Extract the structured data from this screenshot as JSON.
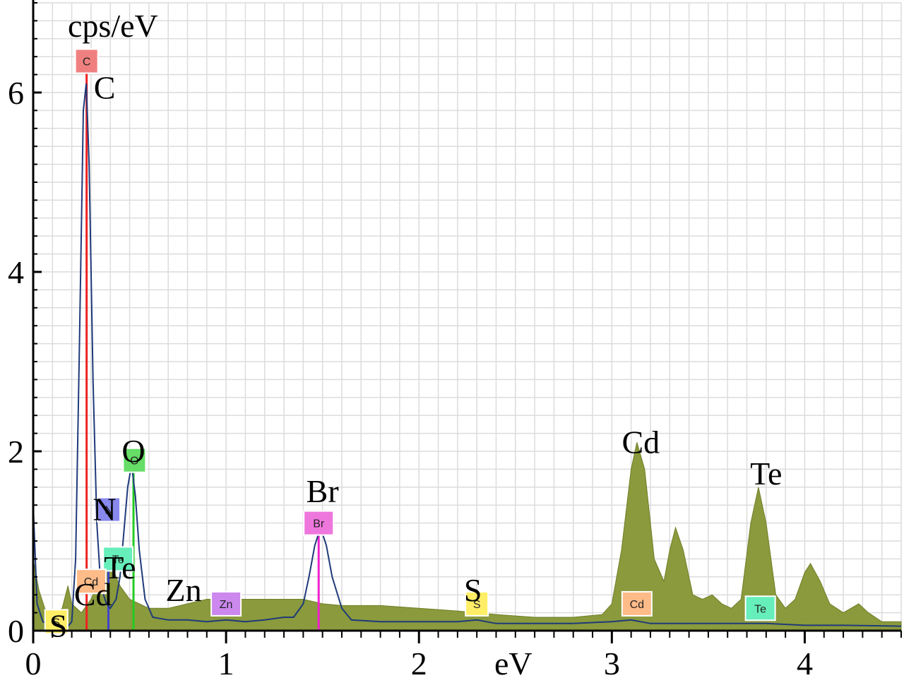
{
  "chart_data": {
    "type": "area",
    "x_unit": "eV",
    "y_unit": "cps/eV",
    "xlim": [
      0,
      4.5
    ],
    "ylim": [
      0,
      7
    ],
    "x_ticks": [
      "0",
      "1",
      "2",
      "3",
      "4"
    ],
    "y_ticks": [
      "0",
      "2",
      "4",
      "6"
    ],
    "grid": true,
    "colors": {
      "filled_spectrum": "#8a9a3c",
      "line_spectrum": "#1f3a7a",
      "background": "#ffffff",
      "grid": "#dcdcdc"
    },
    "series": [
      {
        "style": "filled",
        "points": [
          [
            0.0,
            0.8
          ],
          [
            0.03,
            0.45
          ],
          [
            0.06,
            0.25
          ],
          [
            0.1,
            0.15
          ],
          [
            0.15,
            0.25
          ],
          [
            0.18,
            0.5
          ],
          [
            0.2,
            0.3
          ],
          [
            0.25,
            0.2
          ],
          [
            0.3,
            0.35
          ],
          [
            0.35,
            0.6
          ],
          [
            0.4,
            0.75
          ],
          [
            0.45,
            0.5
          ],
          [
            0.5,
            0.35
          ],
          [
            0.6,
            0.25
          ],
          [
            0.7,
            0.25
          ],
          [
            0.8,
            0.3
          ],
          [
            0.9,
            0.35
          ],
          [
            1.0,
            0.35
          ],
          [
            1.1,
            0.35
          ],
          [
            1.2,
            0.35
          ],
          [
            1.3,
            0.35
          ],
          [
            1.4,
            0.35
          ],
          [
            1.5,
            0.3
          ],
          [
            1.6,
            0.28
          ],
          [
            1.8,
            0.28
          ],
          [
            2.0,
            0.25
          ],
          [
            2.2,
            0.22
          ],
          [
            2.4,
            0.18
          ],
          [
            2.6,
            0.15
          ],
          [
            2.8,
            0.15
          ],
          [
            2.95,
            0.18
          ],
          [
            3.0,
            0.3
          ],
          [
            3.05,
            0.9
          ],
          [
            3.1,
            1.8
          ],
          [
            3.13,
            2.1
          ],
          [
            3.17,
            1.8
          ],
          [
            3.22,
            0.8
          ],
          [
            3.27,
            0.55
          ],
          [
            3.3,
            0.9
          ],
          [
            3.33,
            1.15
          ],
          [
            3.37,
            0.9
          ],
          [
            3.42,
            0.4
          ],
          [
            3.47,
            0.35
          ],
          [
            3.52,
            0.4
          ],
          [
            3.57,
            0.3
          ],
          [
            3.62,
            0.25
          ],
          [
            3.67,
            0.35
          ],
          [
            3.72,
            1.2
          ],
          [
            3.76,
            1.6
          ],
          [
            3.8,
            1.2
          ],
          [
            3.85,
            0.4
          ],
          [
            3.9,
            0.25
          ],
          [
            3.95,
            0.35
          ],
          [
            4.0,
            0.65
          ],
          [
            4.03,
            0.75
          ],
          [
            4.08,
            0.55
          ],
          [
            4.13,
            0.3
          ],
          [
            4.2,
            0.2
          ],
          [
            4.28,
            0.3
          ],
          [
            4.33,
            0.2
          ],
          [
            4.4,
            0.1
          ],
          [
            4.5,
            0.1
          ]
        ]
      },
      {
        "style": "line",
        "points": [
          [
            0.0,
            1.4
          ],
          [
            0.02,
            0.3
          ],
          [
            0.05,
            0.1
          ],
          [
            0.1,
            0.05
          ],
          [
            0.15,
            0.05
          ],
          [
            0.18,
            0.05
          ],
          [
            0.2,
            0.1
          ],
          [
            0.22,
            0.8
          ],
          [
            0.24,
            3.2
          ],
          [
            0.26,
            5.8
          ],
          [
            0.275,
            6.1
          ],
          [
            0.29,
            5.2
          ],
          [
            0.31,
            2.8
          ],
          [
            0.33,
            1.2
          ],
          [
            0.35,
            0.5
          ],
          [
            0.38,
            0.3
          ],
          [
            0.4,
            0.25
          ],
          [
            0.43,
            0.35
          ],
          [
            0.45,
            0.6
          ],
          [
            0.47,
            1.1
          ],
          [
            0.49,
            1.6
          ],
          [
            0.51,
            1.85
          ],
          [
            0.53,
            1.5
          ],
          [
            0.55,
            0.9
          ],
          [
            0.58,
            0.35
          ],
          [
            0.62,
            0.15
          ],
          [
            0.7,
            0.12
          ],
          [
            0.8,
            0.12
          ],
          [
            0.9,
            0.1
          ],
          [
            1.0,
            0.12
          ],
          [
            1.1,
            0.1
          ],
          [
            1.2,
            0.12
          ],
          [
            1.3,
            0.15
          ],
          [
            1.35,
            0.15
          ],
          [
            1.4,
            0.3
          ],
          [
            1.43,
            0.6
          ],
          [
            1.46,
            0.95
          ],
          [
            1.49,
            1.15
          ],
          [
            1.52,
            0.95
          ],
          [
            1.55,
            0.6
          ],
          [
            1.6,
            0.25
          ],
          [
            1.65,
            0.12
          ],
          [
            1.8,
            0.1
          ],
          [
            2.0,
            0.1
          ],
          [
            2.2,
            0.1
          ],
          [
            2.3,
            0.12
          ],
          [
            2.4,
            0.08
          ],
          [
            2.6,
            0.08
          ],
          [
            2.8,
            0.08
          ],
          [
            3.0,
            0.1
          ],
          [
            3.1,
            0.12
          ],
          [
            3.2,
            0.08
          ],
          [
            3.4,
            0.08
          ],
          [
            3.6,
            0.08
          ],
          [
            3.8,
            0.08
          ],
          [
            4.0,
            0.06
          ],
          [
            4.2,
            0.06
          ],
          [
            4.5,
            0.05
          ]
        ]
      }
    ],
    "annotations": [
      {
        "text": "C",
        "x": 0.37,
        "y": 6.05
      },
      {
        "text": "O",
        "x": 0.52,
        "y": 2.0
      },
      {
        "text": "N",
        "x": 0.37,
        "y": 1.35
      },
      {
        "text": "Te",
        "x": 0.45,
        "y": 0.7
      },
      {
        "text": "Cd",
        "x": 0.31,
        "y": 0.4
      },
      {
        "text": "S",
        "x": 0.13,
        "y": 0.05
      },
      {
        "text": "Zn",
        "x": 0.78,
        "y": 0.45
      },
      {
        "text": "Br",
        "x": 1.5,
        "y": 1.55
      },
      {
        "text": "S",
        "x": 2.28,
        "y": 0.45
      },
      {
        "text": "Cd",
        "x": 3.15,
        "y": 2.1
      },
      {
        "text": "Te",
        "x": 3.8,
        "y": 1.75
      }
    ],
    "markers": [
      {
        "label": "C",
        "x": 0.277,
        "y": 6.35,
        "color": "#f08080"
      },
      {
        "label": "O",
        "x": 0.525,
        "y": 1.9,
        "color": "#66dd66"
      },
      {
        "label": "N",
        "x": 0.392,
        "y": 1.35,
        "color": "#8888ee"
      },
      {
        "label": "Te",
        "x": 0.44,
        "y": 0.8,
        "color": "#66eebb"
      },
      {
        "label": "Cd",
        "x": 0.3,
        "y": 0.55,
        "color": "#ffbb88"
      },
      {
        "label": "S",
        "x": 0.12,
        "y": 0.1,
        "color": "#ffee66"
      },
      {
        "label": "Zn",
        "x": 1.0,
        "y": 0.3,
        "color": "#cc88ee"
      },
      {
        "label": "Br",
        "x": 1.48,
        "y": 1.2,
        "color": "#ee77dd"
      },
      {
        "label": "S",
        "x": 2.3,
        "y": 0.3,
        "color": "#ffee66"
      },
      {
        "label": "Cd",
        "x": 3.13,
        "y": 0.3,
        "color": "#ffbb88"
      },
      {
        "label": "Te",
        "x": 3.77,
        "y": 0.25,
        "color": "#66eebb"
      }
    ],
    "element_lines": [
      {
        "x": 0.277,
        "y_top": 6.3,
        "color": "#ee2222"
      },
      {
        "x": 0.52,
        "y_top": 1.8,
        "color": "#22cc22"
      },
      {
        "x": 0.39,
        "y_top": 0.7,
        "color": "#4444cc"
      },
      {
        "x": 1.48,
        "y_top": 1.1,
        "color": "#ee22cc"
      }
    ]
  }
}
